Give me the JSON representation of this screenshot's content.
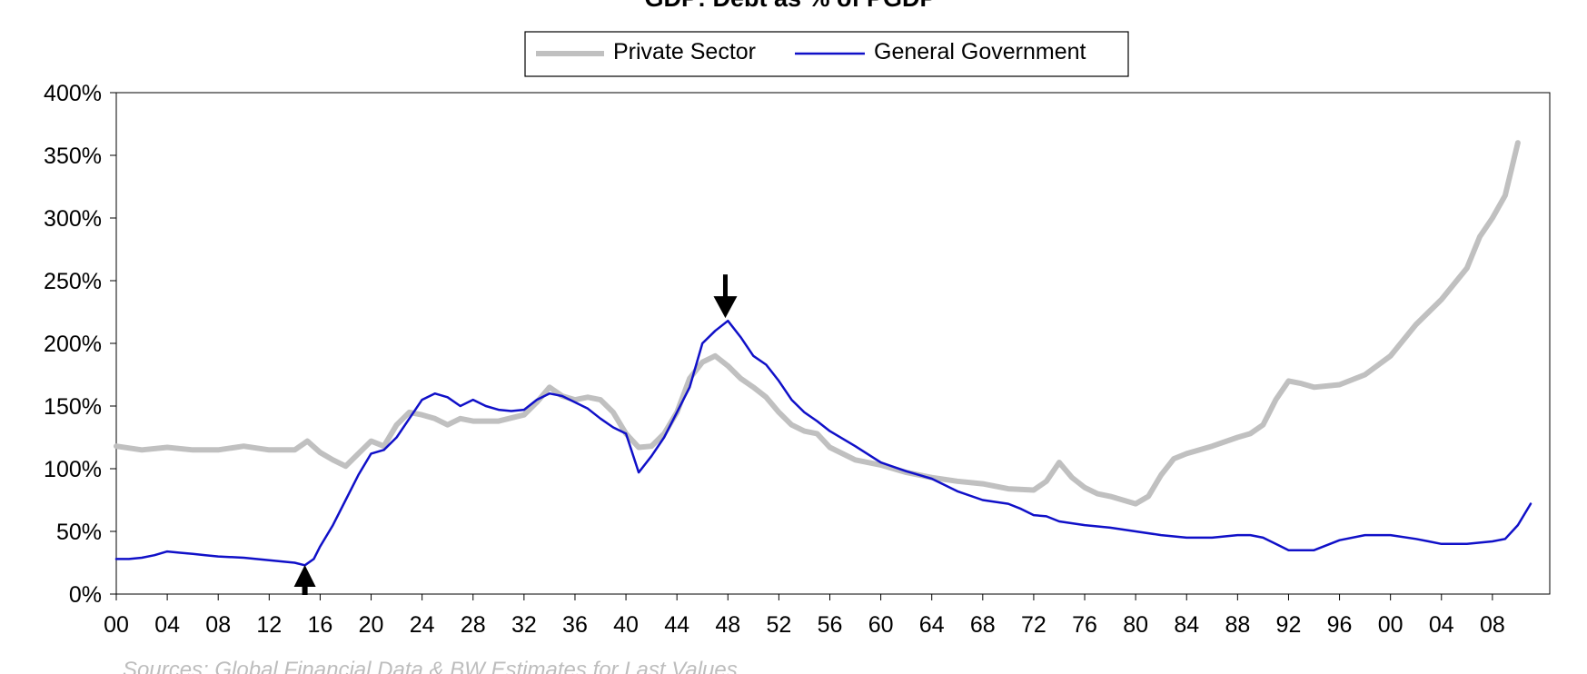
{
  "chart_data": {
    "type": "line",
    "title": "GDP: Debt as % of PGDP",
    "source": "Sources: Global Financial Data & BW Estimates for Last Values",
    "xlabel": "",
    "ylabel": "",
    "ylim": [
      0,
      400
    ],
    "xlim": [
      1900,
      2012.5
    ],
    "yticks": [
      "0%",
      "50%",
      "100%",
      "150%",
      "200%",
      "250%",
      "300%",
      "350%",
      "400%"
    ],
    "xticks": [
      "00",
      "04",
      "08",
      "12",
      "16",
      "20",
      "24",
      "28",
      "32",
      "36",
      "40",
      "44",
      "48",
      "52",
      "56",
      "60",
      "64",
      "68",
      "72",
      "76",
      "80",
      "84",
      "88",
      "92",
      "96",
      "00",
      "04",
      "08"
    ],
    "legend_position": "top-center",
    "annotations": [
      {
        "type": "arrow-up",
        "x": 1914.8,
        "y": 0
      },
      {
        "type": "arrow-down",
        "x": 1947.8,
        "y": 218
      }
    ],
    "series": [
      {
        "name": "Private Sector",
        "color": "#c0c0c0",
        "x": [
          1900,
          1902,
          1904,
          1906,
          1908,
          1910,
          1912,
          1914,
          1915,
          1916,
          1917,
          1918,
          1919,
          1920,
          1921,
          1922,
          1923,
          1924,
          1925,
          1926,
          1927,
          1928,
          1930,
          1932,
          1933,
          1934,
          1935,
          1936,
          1937,
          1938,
          1939,
          1940,
          1941,
          1942,
          1943,
          1944,
          1945,
          1946,
          1947,
          1948,
          1949,
          1950,
          1951,
          1952,
          1953,
          1954,
          1955,
          1956,
          1958,
          1960,
          1962,
          1964,
          1966,
          1968,
          1970,
          1972,
          1973,
          1974,
          1975,
          1976,
          1977,
          1978,
          1980,
          1981,
          1982,
          1983,
          1984,
          1986,
          1988,
          1989,
          1990,
          1991,
          1992,
          1993,
          1994,
          1996,
          1998,
          2000,
          2002,
          2004,
          2006,
          2007,
          2008,
          2009,
          2010
        ],
        "values": [
          118,
          115,
          117,
          115,
          115,
          118,
          115,
          115,
          122,
          113,
          107,
          102,
          112,
          122,
          118,
          135,
          145,
          143,
          140,
          135,
          140,
          138,
          138,
          143,
          153,
          165,
          158,
          155,
          157,
          155,
          145,
          128,
          117,
          118,
          128,
          145,
          172,
          185,
          190,
          182,
          172,
          165,
          157,
          145,
          135,
          130,
          128,
          117,
          107,
          103,
          97,
          93,
          90,
          88,
          84,
          83,
          90,
          105,
          93,
          85,
          80,
          78,
          72,
          78,
          95,
          108,
          112,
          118,
          125,
          128,
          135,
          155,
          170,
          168,
          165,
          167,
          175,
          190,
          215,
          235,
          260,
          285,
          300,
          318,
          360
        ]
      },
      {
        "name": "General Government",
        "color": "#1010c8",
        "x": [
          1900,
          1901,
          1902,
          1903,
          1904,
          1905,
          1906,
          1907,
          1908,
          1910,
          1912,
          1914,
          1914.8,
          1915.5,
          1916,
          1917,
          1918,
          1919,
          1920,
          1921,
          1922,
          1923,
          1924,
          1925,
          1926,
          1927,
          1928,
          1929,
          1930,
          1931,
          1932,
          1933,
          1934,
          1935,
          1936,
          1937,
          1938,
          1939,
          1940,
          1941,
          1942,
          1943,
          1944,
          1945,
          1946,
          1947,
          1948,
          1949,
          1950,
          1951,
          1952,
          1953,
          1954,
          1955,
          1956,
          1958,
          1960,
          1962,
          1964,
          1966,
          1968,
          1970,
          1971,
          1972,
          1973,
          1974,
          1976,
          1978,
          1980,
          1982,
          1984,
          1986,
          1988,
          1989,
          1990,
          1991,
          1992,
          1993,
          1994,
          1996,
          1998,
          2000,
          2002,
          2003,
          2004,
          2006,
          2008,
          2009,
          2010,
          2011
        ],
        "values": [
          28,
          28,
          29,
          31,
          34,
          33,
          32,
          31,
          30,
          29,
          27,
          25,
          23,
          28,
          38,
          55,
          75,
          95,
          112,
          115,
          125,
          140,
          155,
          160,
          157,
          150,
          155,
          150,
          147,
          146,
          147,
          155,
          160,
          158,
          153,
          148,
          140,
          133,
          128,
          97,
          110,
          125,
          145,
          165,
          200,
          210,
          218,
          205,
          190,
          183,
          170,
          155,
          145,
          138,
          130,
          118,
          105,
          98,
          92,
          82,
          75,
          72,
          68,
          63,
          62,
          58,
          55,
          53,
          50,
          47,
          45,
          45,
          47,
          47,
          45,
          40,
          35,
          35,
          35,
          43,
          47,
          47,
          44,
          42,
          40,
          40,
          42,
          44,
          55,
          72
        ]
      }
    ]
  }
}
